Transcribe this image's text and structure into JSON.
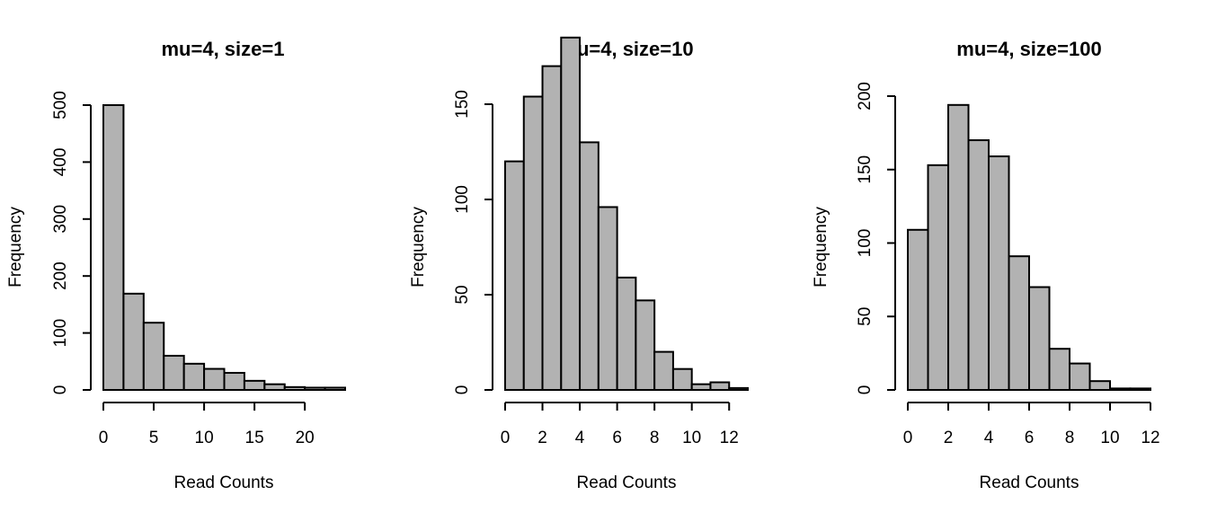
{
  "chart_data": [
    {
      "type": "bar",
      "title": "mu=4, size=1",
      "xlabel": "Read Counts",
      "ylabel": "Frequency",
      "bin_width": 2,
      "bin_start": 0,
      "values": [
        500,
        169,
        118,
        60,
        46,
        37,
        30,
        16,
        10,
        5,
        4,
        4
      ],
      "xlim": [
        0,
        24
      ],
      "ylim": [
        0,
        500
      ],
      "xticks": [
        0,
        5,
        10,
        15,
        20
      ],
      "yticks": [
        0,
        100,
        200,
        300,
        400,
        500
      ],
      "bar_color": "#b2b2b2",
      "grid": false
    },
    {
      "type": "bar",
      "title": "mu=4, size=10",
      "xlabel": "Read Counts",
      "ylabel": "Frequency",
      "bin_width": 1,
      "bin_start": 0,
      "values": [
        120,
        154,
        170,
        185,
        130,
        96,
        59,
        47,
        20,
        11,
        3,
        4,
        1
      ],
      "xlim": [
        0,
        13
      ],
      "ylim": [
        0,
        150
      ],
      "xticks": [
        0,
        2,
        4,
        6,
        8,
        10,
        12
      ],
      "yticks": [
        0,
        50,
        100,
        150
      ],
      "bar_color": "#b2b2b2",
      "grid": false
    },
    {
      "type": "bar",
      "title": "mu=4, size=100",
      "xlabel": "Read Counts",
      "ylabel": "Frequency",
      "bin_width": 1,
      "bin_start": 0,
      "values": [
        109,
        153,
        194,
        170,
        159,
        91,
        70,
        28,
        18,
        6,
        1,
        1
      ],
      "xlim": [
        0,
        12
      ],
      "ylim": [
        0,
        200
      ],
      "xticks": [
        0,
        2,
        4,
        6,
        8,
        10,
        12
      ],
      "yticks": [
        0,
        50,
        100,
        150,
        200
      ],
      "bar_color": "#b2b2b2",
      "grid": false
    }
  ]
}
